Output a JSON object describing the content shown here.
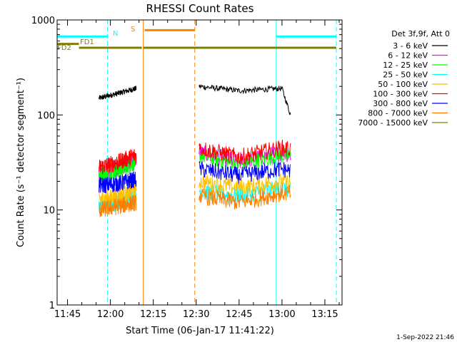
{
  "chart_data": {
    "type": "line",
    "title": "RHESSI Count Rates",
    "xlabel": "Start Time (06-Jan-17 11:41:22)",
    "ylabel": "Count Rate (s⁻¹ detector segment⁻¹)",
    "y_scale": "log",
    "xlim": [
      "11:41:22",
      "13:21:00"
    ],
    "ylim": [
      1,
      1000
    ],
    "x_ticks": [
      "11:45",
      "12:00",
      "12:15",
      "12:30",
      "12:45",
      "13:00",
      "13:15"
    ],
    "y_ticks": [
      "1",
      "10",
      "100",
      "1000"
    ],
    "legend_title": "Det 3f,9f, Att 0",
    "legend_position": "top-right, outside plot",
    "series": [
      {
        "name": "3 - 6 keV",
        "color": "#000000",
        "segments": [
          {
            "x": [
              "11:56",
              "12:03",
              "12:09"
            ],
            "y": [
              150,
              170,
              190
            ]
          },
          {
            "x": [
              "12:31",
              "12:45",
              "13:00",
              "13:03"
            ],
            "y": [
              200,
              180,
              190,
              100
            ]
          }
        ]
      },
      {
        "name": "6 - 12 keV",
        "color": "#ff00ff",
        "segments": [
          {
            "x": [
              "11:56",
              "12:03",
              "12:09"
            ],
            "y": [
              25,
              28,
              35
            ]
          },
          {
            "x": [
              "12:31",
              "12:45",
              "13:00",
              "13:03"
            ],
            "y": [
              40,
              32,
              40,
              38
            ]
          }
        ]
      },
      {
        "name": "12 - 25 keV",
        "color": "#00ff00",
        "segments": [
          {
            "x": [
              "11:56",
              "12:03",
              "12:09"
            ],
            "y": [
              24,
              26,
              32
            ]
          },
          {
            "x": [
              "12:31",
              "12:45",
              "13:00",
              "13:03"
            ],
            "y": [
              38,
              30,
              38,
              36
            ]
          }
        ]
      },
      {
        "name": "25 - 50 keV",
        "color": "#00ffff",
        "segments": [
          {
            "x": [
              "11:56",
              "12:03",
              "12:09"
            ],
            "y": [
              11,
              12,
              14
            ]
          },
          {
            "x": [
              "12:31",
              "12:45",
              "13:00",
              "13:03"
            ],
            "y": [
              16,
              14,
              17,
              16
            ]
          }
        ]
      },
      {
        "name": "50 - 100 keV",
        "color": "#ffc000",
        "segments": [
          {
            "x": [
              "11:56",
              "12:03",
              "12:09"
            ],
            "y": [
              13,
              14,
              16
            ]
          },
          {
            "x": [
              "12:31",
              "12:45",
              "13:00",
              "13:03"
            ],
            "y": [
              20,
              17,
              20,
              19
            ]
          }
        ]
      },
      {
        "name": "100 - 300 keV",
        "color": "#ff0000",
        "segments": [
          {
            "x": [
              "11:56",
              "12:03",
              "12:09"
            ],
            "y": [
              28,
              32,
              38
            ]
          },
          {
            "x": [
              "12:31",
              "12:45",
              "13:00",
              "13:03"
            ],
            "y": [
              45,
              36,
              45,
              44
            ]
          }
        ]
      },
      {
        "name": "300 - 800 keV",
        "color": "#0000ff",
        "segments": [
          {
            "x": [
              "11:56",
              "12:03",
              "12:09"
            ],
            "y": [
              18,
              19,
              21
            ]
          },
          {
            "x": [
              "12:31",
              "12:45",
              "13:00",
              "13:03"
            ],
            "y": [
              27,
              23,
              27,
              26
            ]
          }
        ]
      },
      {
        "name": "800 - 7000 keV",
        "color": "#ff8000",
        "segments": [
          {
            "x": [
              "11:56",
              "12:03",
              "12:09"
            ],
            "y": [
              10,
              11,
              12
            ]
          },
          {
            "x": [
              "12:31",
              "12:45",
              "13:00",
              "13:03"
            ],
            "y": [
              14,
              12,
              15,
              15
            ]
          }
        ]
      },
      {
        "name": "7000 - 15000 keV",
        "color": "#808000",
        "segments": []
      }
    ],
    "annotations": [
      {
        "label": "N",
        "color": "#00ffff",
        "bars": [
          [
            "11:41:22",
            "11:59:00"
          ],
          [
            "12:58:00",
            "13:19:00"
          ]
        ],
        "level": 670
      },
      {
        "label": "S",
        "color": "#ff8000",
        "bars": [
          [
            "12:12:00",
            "12:29:30"
          ]
        ],
        "level": 780
      },
      {
        "label": "FD1",
        "color": "#808000",
        "bars": [
          [
            "11:41:22",
            "11:49:00"
          ]
        ],
        "level": 560
      },
      {
        "label": "FD2",
        "color": "#808000",
        "bars": [
          [
            "11:49:00",
            "12:11:00"
          ],
          [
            "12:11:30",
            "13:19:00"
          ]
        ],
        "level": 510
      }
    ],
    "vlines": [
      {
        "x": "11:41:22",
        "color": "#00ffff",
        "style": "solid"
      },
      {
        "x": "11:59:00",
        "color": "#00ffff",
        "style": "dashed"
      },
      {
        "x": "12:11:30",
        "color": "#ff8000",
        "style": "solid"
      },
      {
        "x": "12:29:30",
        "color": "#ff8000",
        "style": "dashed"
      },
      {
        "x": "12:58:00",
        "color": "#00ffff",
        "style": "solid"
      },
      {
        "x": "13:19:00",
        "color": "#00ffff",
        "style": "dashed"
      }
    ],
    "footer_date": "1-Sep-2022 21:46"
  }
}
